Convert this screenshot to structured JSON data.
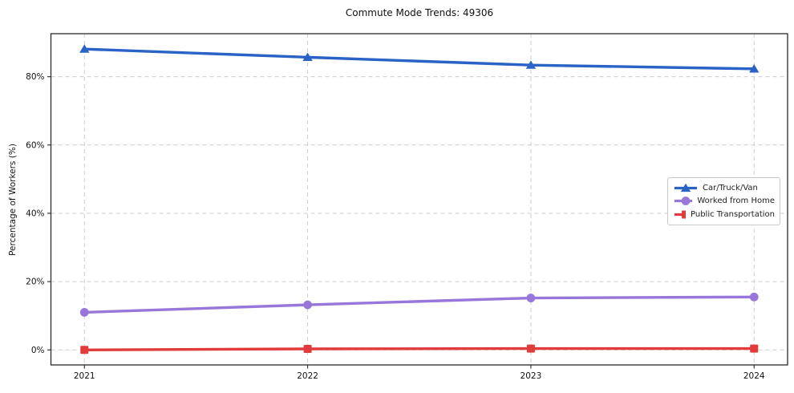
{
  "chart_data": {
    "type": "line",
    "title": "Commute Mode Trends: 49306",
    "xlabel": "",
    "ylabel": "Percentage of Workers (%)",
    "categories": [
      2021,
      2022,
      2023,
      2024
    ],
    "x_tick_labels": [
      "2021",
      "2022",
      "2023",
      "2024"
    ],
    "series": [
      {
        "name": "Car/Truck/Van",
        "marker": "triangle",
        "color": "#2a63c5",
        "values": [
          88.1,
          85.7,
          83.4,
          82.3
        ]
      },
      {
        "name": "Worked from Home",
        "marker": "circle",
        "color": "#9777d9",
        "values": [
          11.0,
          13.2,
          15.2,
          15.5
        ]
      },
      {
        "name": "Public Transportation",
        "marker": "square",
        "color": "#e23b3c",
        "values": [
          0.0,
          0.3,
          0.4,
          0.4
        ]
      }
    ],
    "yticks": {
      "values": [
        0,
        20,
        40,
        60,
        80
      ],
      "labels": [
        "0%",
        "20%",
        "40%",
        "60%",
        "80%"
      ]
    },
    "xlim": [
      2020.85,
      2024.15
    ],
    "ylim": [
      -4.4,
      92.6
    ],
    "grid": true,
    "grid_style": "dashed",
    "grid_color": "#cccccc",
    "axis_border_color": "#2a2a2a",
    "tick_label_color": "#111111",
    "legend_position": "center-right"
  }
}
